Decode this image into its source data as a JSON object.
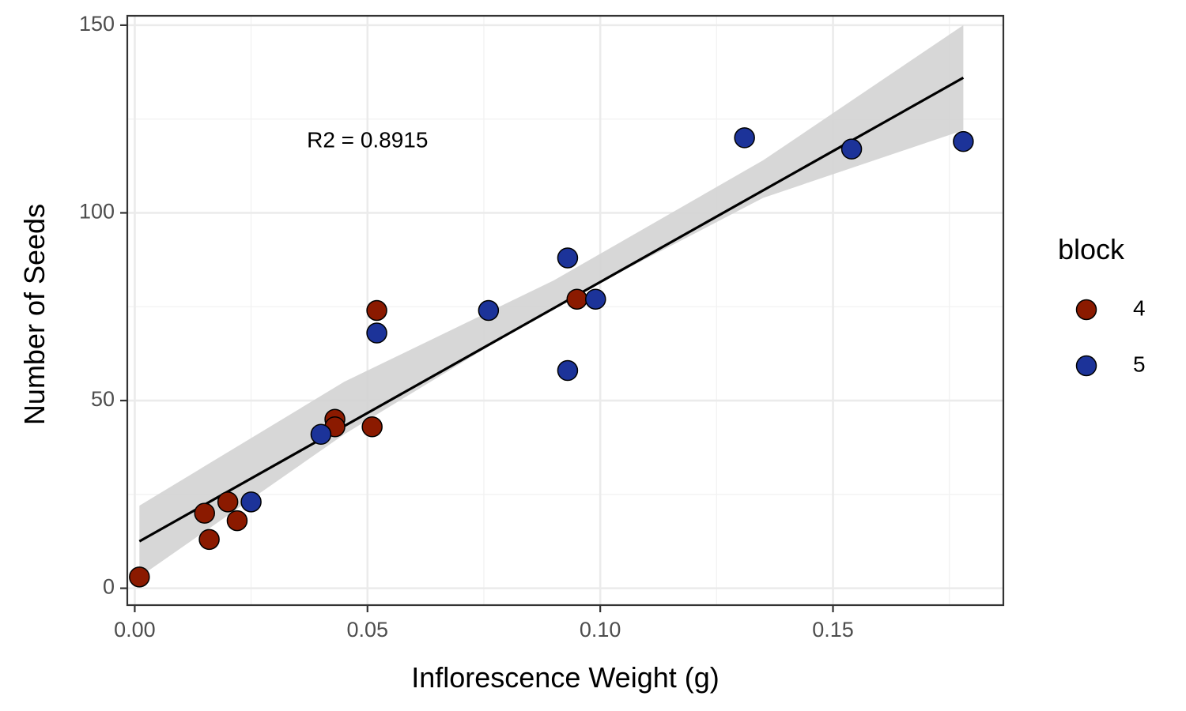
{
  "chart_data": {
    "type": "scatter",
    "title": "",
    "xlabel": "Inflorescence Weight (g)",
    "ylabel": "Number of Seeds",
    "xlim": [
      -0.0016,
      0.1866
    ],
    "ylim": [
      -4.5,
      152.5
    ],
    "x_ticks": [
      0.0,
      0.05,
      0.1,
      0.15
    ],
    "x_tick_labels": [
      "0.00",
      "0.05",
      "0.10",
      "0.15"
    ],
    "y_ticks": [
      0,
      50,
      100,
      150
    ],
    "y_tick_labels": [
      "0",
      "50",
      "100",
      "150"
    ],
    "grid": true,
    "annotation": {
      "text": "R2 = 0.8915",
      "x": 0.05,
      "y": 119
    },
    "legend": {
      "title": "block",
      "position": "right",
      "entries": [
        {
          "label": "4",
          "color": "#8B1A00"
        },
        {
          "label": "5",
          "color": "#1C3399"
        }
      ]
    },
    "series": [
      {
        "name": "4",
        "color": "#8B1A00",
        "points": [
          {
            "x": 0.001,
            "y": 3
          },
          {
            "x": 0.015,
            "y": 20
          },
          {
            "x": 0.016,
            "y": 13
          },
          {
            "x": 0.02,
            "y": 23
          },
          {
            "x": 0.022,
            "y": 18
          },
          {
            "x": 0.043,
            "y": 45
          },
          {
            "x": 0.043,
            "y": 43
          },
          {
            "x": 0.051,
            "y": 43
          },
          {
            "x": 0.052,
            "y": 74
          },
          {
            "x": 0.095,
            "y": 77
          }
        ]
      },
      {
        "name": "5",
        "color": "#1C3399",
        "points": [
          {
            "x": 0.025,
            "y": 23
          },
          {
            "x": 0.04,
            "y": 41
          },
          {
            "x": 0.052,
            "y": 68
          },
          {
            "x": 0.076,
            "y": 74
          },
          {
            "x": 0.093,
            "y": 88
          },
          {
            "x": 0.093,
            "y": 58
          },
          {
            "x": 0.099,
            "y": 77
          },
          {
            "x": 0.131,
            "y": 120
          },
          {
            "x": 0.154,
            "y": 117
          },
          {
            "x": 0.178,
            "y": 119
          }
        ]
      }
    ],
    "fit_line": {
      "type": "linear",
      "color": "#000000",
      "x_range": [
        0.001,
        0.178
      ],
      "y_at_range": [
        12.5,
        136
      ],
      "confidence_band": {
        "color": "#d3d3d3",
        "x": [
          0.001,
          0.045,
          0.09,
          0.135,
          0.178
        ],
        "lower": [
          3,
          41,
          75,
          104,
          122
        ],
        "upper": [
          22,
          55,
          82,
          114,
          150
        ]
      }
    }
  }
}
